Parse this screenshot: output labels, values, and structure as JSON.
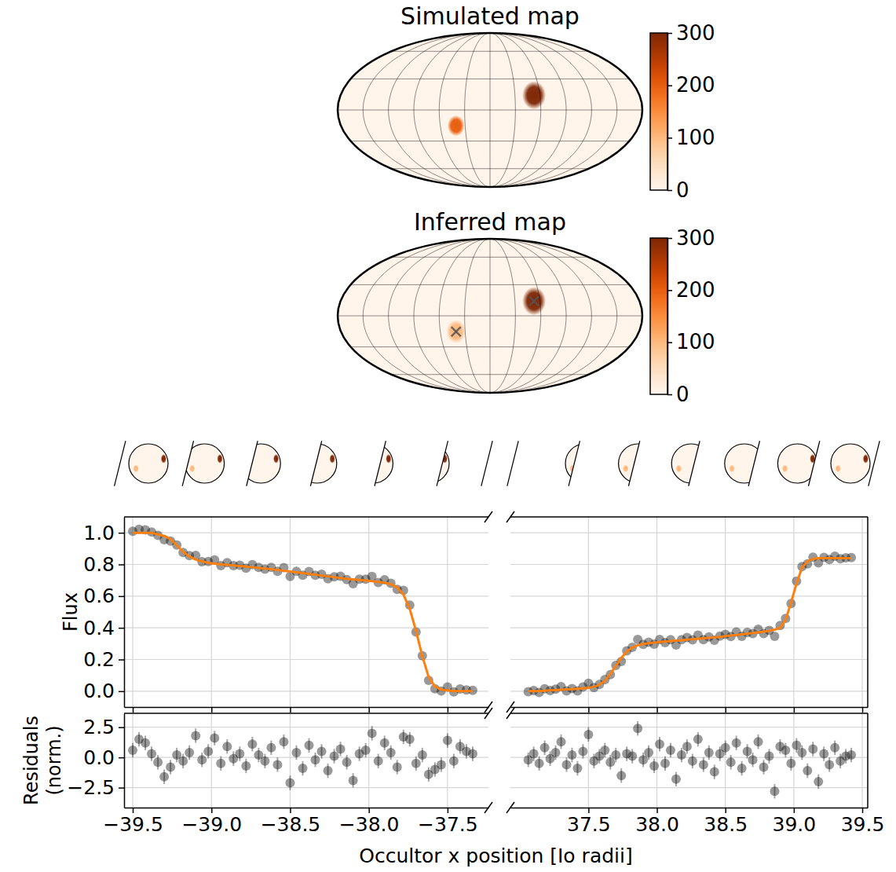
{
  "chart_data": [
    {
      "type": "map",
      "title": "Simulated map",
      "grid": true,
      "tick_labels": false,
      "graticule": {
        "lon": [
          -150,
          -120,
          -90,
          -60,
          -30,
          0,
          30,
          60,
          90,
          120,
          150
        ],
        "lat": [
          -60,
          -30,
          0,
          30,
          60
        ]
      },
      "spots": [
        {
          "lon": 53,
          "lat": 14,
          "radius": 11,
          "value": 300
        },
        {
          "lon": -41,
          "lat": -15,
          "radius": 8,
          "value": 200
        }
      ],
      "colorbar": {
        "range": [
          0,
          300
        ],
        "ticks": [
          0,
          100,
          200,
          300
        ]
      }
    },
    {
      "type": "map",
      "title": "Inferred map",
      "grid": true,
      "tick_labels": false,
      "marker": "x",
      "graticule": {
        "lon": [
          -150,
          -120,
          -90,
          -60,
          -30,
          0,
          30,
          60,
          90,
          120,
          150
        ],
        "lat": [
          -60,
          -30,
          0,
          30,
          60
        ]
      },
      "spots": [
        {
          "lon": 53,
          "lat": 14,
          "radius": 11,
          "value": 300
        },
        {
          "lon": -41,
          "lat": -15,
          "radius": 9,
          "value": 100
        }
      ],
      "colorbar": {
        "range": [
          0,
          300
        ],
        "ticks": [
          0,
          100,
          200,
          300
        ]
      }
    },
    {
      "type": "scatter",
      "ylabel": "Flux",
      "ylim": [
        -0.1,
        1.1
      ],
      "yticks": [
        {
          "value": 0,
          "label": "0.0"
        },
        0.2,
        0.4,
        0.6,
        0.8,
        {
          "value": 1,
          "label": "1.0"
        }
      ],
      "grid": true,
      "tick_labels": "y",
      "panels": [
        {
          "xlim": [
            -39.555,
            -37.24
          ],
          "xticks": [
            -39.5,
            -39,
            -38.5,
            -38,
            -37.5
          ],
          "x": [
            -39.5,
            -39.46,
            -39.42,
            -39.38,
            -39.34,
            -39.3,
            -39.26,
            -39.22,
            -39.18,
            -39.14,
            -39.1,
            -39.06,
            -39.02,
            -38.98,
            -38.94,
            -38.9,
            -38.86,
            -38.82,
            -38.78,
            -38.74,
            -38.7,
            -38.66,
            -38.62,
            -38.58,
            -38.54,
            -38.5,
            -38.46,
            -38.42,
            -38.38,
            -38.34,
            -38.3,
            -38.26,
            -38.22,
            -38.18,
            -38.14,
            -38.1,
            -38.06,
            -38.02,
            -37.98,
            -37.94,
            -37.9,
            -37.86,
            -37.82,
            -37.78,
            -37.74,
            -37.7,
            -37.66,
            -37.62,
            -37.58,
            -37.54,
            -37.5,
            -37.46,
            -37.42,
            -37.38,
            -37.34
          ],
          "series": [
            {
              "type": "scatter",
              "color": "#000000",
              "marker": "o",
              "values": [
                1.009,
                1.022,
                1.018,
                1.005,
                0.984,
                0.956,
                0.948,
                0.923,
                0.876,
                0.856,
                0.857,
                0.817,
                0.818,
                0.829,
                0.793,
                0.811,
                0.793,
                0.795,
                0.776,
                0.799,
                0.781,
                0.77,
                0.782,
                0.756,
                0.78,
                0.724,
                0.756,
                0.732,
                0.755,
                0.732,
                0.738,
                0.709,
                0.722,
                0.726,
                0.704,
                0.678,
                0.707,
                0.707,
                0.724,
                0.686,
                0.703,
                0.681,
                0.643,
                0.636,
                0.543,
                0.373,
                0.223,
                0.069,
                0.015,
                0.001,
                0.026,
                -0.005,
                0.014,
                0.008,
                0.005
              ]
            },
            {
              "type": "line",
              "color": "#ff7f0e",
              "values": [
                1.0,
                1.0,
                1.0,
                1.0,
                0.99,
                0.98,
                0.96,
                0.92,
                0.88,
                0.85,
                0.83,
                0.82,
                0.81,
                0.805,
                0.8,
                0.797,
                0.794,
                0.79,
                0.786,
                0.782,
                0.778,
                0.774,
                0.77,
                0.765,
                0.76,
                0.755,
                0.75,
                0.745,
                0.74,
                0.735,
                0.73,
                0.725,
                0.72,
                0.715,
                0.71,
                0.706,
                0.702,
                0.698,
                0.694,
                0.69,
                0.685,
                0.675,
                0.655,
                0.61,
                0.52,
                0.38,
                0.22,
                0.09,
                0.03,
                0.01,
                0.005,
                0,
                0,
                0,
                0
              ]
            }
          ]
        },
        {
          "xlim": [
            36.93,
            39.54
          ],
          "xticks": [
            37.5,
            38,
            38.5,
            39,
            39.5
          ],
          "x": [
            37.06,
            37.1,
            37.14,
            37.18,
            37.22,
            37.26,
            37.3,
            37.34,
            37.38,
            37.42,
            37.46,
            37.5,
            37.54,
            37.58,
            37.62,
            37.66,
            37.7,
            37.74,
            37.78,
            37.82,
            37.86,
            37.9,
            37.94,
            37.98,
            38.02,
            38.06,
            38.1,
            38.14,
            38.18,
            38.22,
            38.26,
            38.3,
            38.34,
            38.38,
            38.42,
            38.46,
            38.5,
            38.54,
            38.58,
            38.62,
            38.66,
            38.7,
            38.74,
            38.78,
            38.82,
            38.86,
            38.9,
            38.94,
            38.98,
            39.02,
            39.06,
            39.1,
            39.14,
            39.18,
            39.22,
            39.26,
            39.3,
            39.34,
            39.38,
            39.42
          ],
          "series": [
            {
              "type": "scatter",
              "color": "#000000",
              "marker": "o",
              "values": [
                -0.003,
                0.004,
                -0.008,
                0.015,
                0.004,
                0.013,
                0.029,
                0.002,
                0.016,
                0.002,
                0.026,
                0.05,
                0.023,
                0.042,
                0.074,
                0.104,
                0.163,
                0.188,
                0.255,
                0.277,
                0.326,
                0.295,
                0.309,
                0.297,
                0.327,
                0.306,
                0.325,
                0.292,
                0.325,
                0.339,
                0.324,
                0.354,
                0.325,
                0.343,
                0.322,
                0.348,
                0.359,
                0.345,
                0.373,
                0.346,
                0.371,
                0.364,
                0.391,
                0.364,
                0.383,
                0.346,
                0.414,
                0.459,
                0.553,
                0.695,
                0.786,
                0.804,
                0.846,
                0.81,
                0.845,
                0.831,
                0.852,
                0.836,
                0.842,
                0.843
              ]
            },
            {
              "type": "line",
              "color": "#ff7f0e",
              "values": [
                0,
                0,
                0,
                0.003,
                0.005,
                0.007,
                0.009,
                0.011,
                0.013,
                0.015,
                0.018,
                0.021,
                0.027,
                0.04,
                0.065,
                0.11,
                0.16,
                0.21,
                0.25,
                0.275,
                0.29,
                0.298,
                0.303,
                0.307,
                0.31,
                0.313,
                0.316,
                0.319,
                0.322,
                0.325,
                0.328,
                0.331,
                0.334,
                0.337,
                0.34,
                0.343,
                0.347,
                0.351,
                0.355,
                0.359,
                0.363,
                0.367,
                0.371,
                0.376,
                0.381,
                0.388,
                0.4,
                0.45,
                0.56,
                0.68,
                0.78,
                0.82,
                0.835,
                0.84,
                0.84,
                0.84,
                0.84,
                0.84,
                0.84,
                0.84
              ]
            }
          ]
        }
      ]
    },
    {
      "type": "scatter",
      "ylabel": "Residuals (norm.)",
      "xlabel": "Occultor x position [Io radii]",
      "ylim": [
        -4.15,
        3.65
      ],
      "yticks": [
        {
          "value": -2.5,
          "label": "−2.5"
        },
        {
          "value": 0,
          "label": "0.0"
        },
        2.5
      ],
      "grid": true,
      "tick_labels": true,
      "panels": [
        {
          "xlim": [
            -39.555,
            -37.24
          ],
          "xticks": [
            {
              "value": -39.5,
              "label": "−39.5"
            },
            {
              "value": -39,
              "label": "−39.0"
            },
            {
              "value": -38.5,
              "label": "−38.5"
            },
            {
              "value": -38,
              "label": "−38.0"
            },
            {
              "value": -37.5,
              "label": "−37.5"
            }
          ],
          "x": [
            -39.5,
            -39.46,
            -39.42,
            -39.38,
            -39.34,
            -39.3,
            -39.26,
            -39.22,
            -39.18,
            -39.14,
            -39.1,
            -39.06,
            -39.02,
            -38.98,
            -38.94,
            -38.9,
            -38.86,
            -38.82,
            -38.78,
            -38.74,
            -38.7,
            -38.66,
            -38.62,
            -38.58,
            -38.54,
            -38.5,
            -38.46,
            -38.42,
            -38.38,
            -38.34,
            -38.3,
            -38.26,
            -38.22,
            -38.18,
            -38.14,
            -38.1,
            -38.06,
            -38.02,
            -37.98,
            -37.94,
            -37.9,
            -37.86,
            -37.82,
            -37.78,
            -37.74,
            -37.7,
            -37.66,
            -37.62,
            -37.58,
            -37.54,
            -37.5,
            -37.46,
            -37.42,
            -37.38,
            -37.34
          ],
          "series": [
            {
              "type": "scatter",
              "color": "#000000",
              "marker": "o",
              "values": [
                0.6,
                1.5,
                1.2,
                0.3,
                -0.4,
                -1.6,
                -0.8,
                0.2,
                -0.3,
                0.4,
                1.8,
                -0.2,
                0.5,
                1.6,
                -0.5,
                0.9,
                -0.1,
                0.3,
                -0.7,
                1.1,
                0.2,
                -0.3,
                0.8,
                -0.6,
                1.3,
                -2.1,
                0.4,
                -0.9,
                1.0,
                -0.2,
                0.5,
                -1.1,
                0.1,
                0.7,
                -0.4,
                -1.9,
                0.3,
                0.6,
                2.0,
                -0.3,
                1.2,
                0.4,
                -0.8,
                1.7,
                1.5,
                -0.5,
                0.2,
                -1.4,
                -1.0,
                -0.6,
                1.4,
                -0.3,
                0.9,
                0.5,
                0.3
              ],
              "errors": [
                0.6,
                0.6,
                0.6,
                0.6,
                0.6,
                0.6,
                0.6,
                0.6,
                0.6,
                0.6,
                0.6,
                0.6,
                0.6,
                0.6,
                0.6,
                0.6,
                0.6,
                0.6,
                0.6,
                0.6,
                0.6,
                0.6,
                0.6,
                0.6,
                0.6,
                0.6,
                0.6,
                0.6,
                0.6,
                0.6,
                0.6,
                0.6,
                0.6,
                0.6,
                0.6,
                0.6,
                0.6,
                0.6,
                0.6,
                0.6,
                0.6,
                0.6,
                0.6,
                0.6,
                0.6,
                0.6,
                0.6,
                0.6,
                0.6,
                0.6,
                0.6,
                0.6,
                0.6,
                0.6,
                0.6
              ]
            }
          ]
        },
        {
          "xlim": [
            36.93,
            39.54
          ],
          "xticks": [
            37.5,
            {
              "value": 38,
              "label": "38.0"
            },
            38.5,
            {
              "value": 39,
              "label": "39.0"
            },
            39.5
          ],
          "x": [
            37.06,
            37.1,
            37.14,
            37.18,
            37.22,
            37.26,
            37.3,
            37.34,
            37.38,
            37.42,
            37.46,
            37.5,
            37.54,
            37.58,
            37.62,
            37.66,
            37.7,
            37.74,
            37.78,
            37.82,
            37.86,
            37.9,
            37.94,
            37.98,
            38.02,
            38.06,
            38.1,
            38.14,
            38.18,
            38.22,
            38.26,
            38.3,
            38.34,
            38.38,
            38.42,
            38.46,
            38.5,
            38.54,
            38.58,
            38.62,
            38.66,
            38.7,
            38.74,
            38.78,
            38.82,
            38.86,
            38.9,
            38.94,
            38.98,
            39.02,
            39.06,
            39.1,
            39.14,
            39.18,
            39.22,
            39.26,
            39.3,
            39.34,
            39.38,
            39.42
          ],
          "series": [
            {
              "type": "scatter",
              "color": "#000000",
              "marker": "o",
              "values": [
                -0.2,
                0.3,
                -0.5,
                0.8,
                -0.1,
                0.4,
                1.3,
                -0.6,
                0.2,
                -0.9,
                0.5,
                1.9,
                -0.3,
                0.1,
                0.6,
                -0.4,
                0.2,
                -1.5,
                0.3,
                0.1,
                2.4,
                -0.2,
                0.4,
                -0.7,
                1.1,
                -0.5,
                0.6,
                -1.8,
                0.2,
                0.9,
                -0.3,
                1.5,
                -0.6,
                0.4,
                -1.2,
                0.3,
                0.8,
                -0.4,
                1.2,
                -0.9,
                0.5,
                -0.2,
                1.3,
                -0.8,
                0.1,
                -2.8,
                0.9,
                0.6,
                -0.5,
                1.0,
                0.4,
                -1.1,
                0.7,
                -2.0,
                0.3,
                -0.6,
                0.8,
                -0.3,
                0.1,
                0.2
              ],
              "errors": [
                0.6,
                0.6,
                0.6,
                0.6,
                0.6,
                0.6,
                0.6,
                0.6,
                0.6,
                0.6,
                0.6,
                0.6,
                0.6,
                0.6,
                0.6,
                0.6,
                0.6,
                0.6,
                0.6,
                0.6,
                0.6,
                0.6,
                0.6,
                0.6,
                0.6,
                0.6,
                0.6,
                0.6,
                0.6,
                0.6,
                0.6,
                0.6,
                0.6,
                0.6,
                0.6,
                0.6,
                0.6,
                0.6,
                0.6,
                0.6,
                0.6,
                0.6,
                0.6,
                0.6,
                0.6,
                0.6,
                0.6,
                0.6,
                0.6,
                0.6,
                0.6,
                0.6,
                0.6,
                0.6,
                0.6,
                0.6,
                0.6,
                0.6,
                0.6,
                0.6
              ]
            }
          ]
        }
      ]
    }
  ]
}
